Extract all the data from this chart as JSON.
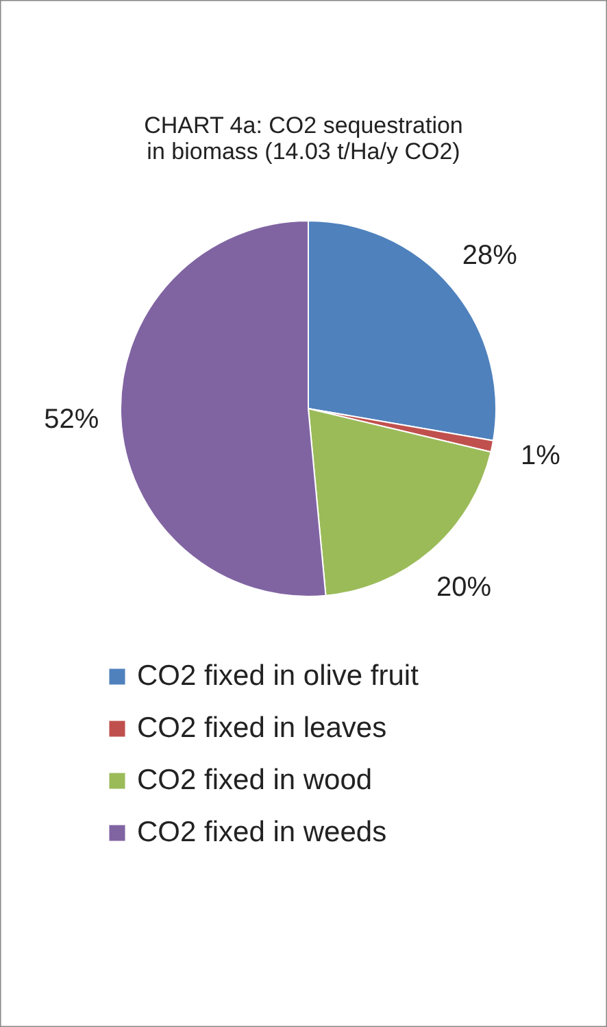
{
  "chart_data": {
    "type": "pie",
    "title": "CHART 4a: CO2 sequestration in biomass (14.03 t/Ha/y CO2)",
    "categories": [
      "CO2 fixed in olive fruit",
      "CO2 fixed in leaves",
      "CO2 fixed in wood",
      "CO2 fixed in weeds"
    ],
    "values": [
      28,
      1,
      20,
      52
    ],
    "value_labels": [
      "28%",
      "1%",
      "20%",
      "52%"
    ],
    "colors": [
      "#4f81bd",
      "#c0504d",
      "#9bbb59",
      "#8064a2"
    ],
    "legend": "bottom"
  }
}
